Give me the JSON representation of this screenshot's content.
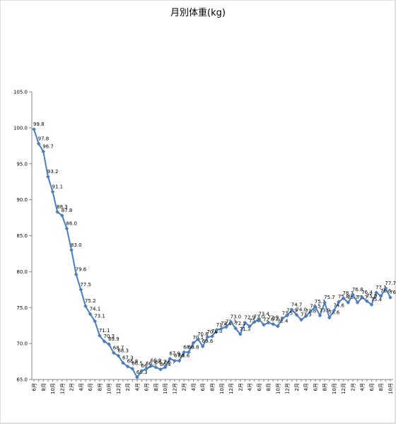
{
  "chart_data": {
    "type": "line",
    "title": "月別体重(kg)",
    "categories": [
      "6月",
      null,
      "8月",
      null,
      "10月",
      null,
      "12月",
      null,
      "2月",
      null,
      "4月",
      null,
      "6月",
      null,
      "8月",
      null,
      "10月",
      null,
      "12月",
      null,
      "2月",
      null,
      "4月",
      null,
      "6月",
      null,
      "8月",
      null,
      "10月",
      null,
      "12月",
      null,
      "2月",
      null,
      "4月",
      null,
      "6月",
      null,
      "8月",
      null,
      "10月",
      null,
      "12月",
      null,
      "2月",
      null,
      "4月",
      null,
      "6月",
      null,
      "8月",
      null,
      "10月",
      null,
      "12月",
      null,
      "2月",
      null,
      "4月",
      null,
      "6月",
      null,
      "8月",
      null,
      "10月",
      null,
      "12月",
      null,
      "2月",
      null,
      "4月",
      null,
      "6月",
      null,
      "8月",
      null,
      "10月"
    ],
    "series": [
      {
        "name": "体重",
        "color": "#4a7ebb",
        "values": [
          99.8,
          97.8,
          96.7,
          93.2,
          91.1,
          88.3,
          87.8,
          86.0,
          83.0,
          79.6,
          77.5,
          75.2,
          74.1,
          73.1,
          71.1,
          70.3,
          69.9,
          68.7,
          68.3,
          67.3,
          66.8,
          66.5,
          65.3,
          66.2,
          66.5,
          66.9,
          66.7,
          66.4,
          66.7,
          67.9,
          67.6,
          67.6,
          68.8,
          68.8,
          70.1,
          70.6,
          69.6,
          70.9,
          71.0,
          71.9,
          72.1,
          72.3,
          73.0,
          72.1,
          71.3,
          72.9,
          72.4,
          73.0,
          73.4,
          72.6,
          72.9,
          72.7,
          72.4,
          73.5,
          73.9,
          74.7,
          74.0,
          73.3,
          73.8,
          74.5,
          75.1,
          73.9,
          75.7,
          73.6,
          74.6,
          75.8,
          76.3,
          75.7,
          76.8,
          75.7,
          76.4,
          75.9,
          75.4,
          77.1,
          76.6,
          77.7,
          76.4
        ],
        "value_labels": [
          "99.8",
          "97.8",
          "96.7",
          "93.2",
          "91.1",
          "88.3",
          "87.8",
          "86.0",
          "83.0",
          "79.6",
          "77.5",
          "75.2",
          "74.1",
          "73.1",
          "71.1",
          "70.3",
          "69.9",
          "68.7",
          "68.3",
          "67.3",
          "66.8",
          "66.5",
          "65.3",
          "66.2",
          "66.5",
          "66.9",
          "66.7",
          "66.4",
          "66.7",
          "67.9",
          "67.6",
          "67.6",
          "68.8",
          "68.8",
          "70.1",
          "70.6",
          "69.6",
          "70.9",
          "71.0",
          "71.9",
          "72.1",
          "72.3",
          "73.0",
          "72.1",
          "71.3",
          "72.9",
          "72.4",
          "73.0",
          "73.4",
          "72.6",
          "72.9",
          "72.7",
          "72.4",
          "73.5",
          "73.9",
          "74.7",
          "74.0",
          "73.3",
          "73.8",
          "74.5",
          "75.1",
          "73.9",
          "75.7",
          "73.6",
          "74.6",
          "75.8",
          "76.3",
          "75.7",
          "76.8",
          "75.7",
          "76.4",
          "75.9",
          "75.4",
          "77.1",
          "76.6",
          "77.7",
          "76.4"
        ]
      }
    ],
    "ylim": [
      65,
      105
    ],
    "yticks": [
      {
        "value": 65,
        "label": "65.0"
      },
      {
        "value": 70,
        "label": "70.0"
      },
      {
        "value": 75,
        "label": "75.0"
      },
      {
        "value": 80,
        "label": "80.0"
      },
      {
        "value": 85,
        "label": "85.0"
      },
      {
        "value": 90,
        "label": "90.0"
      },
      {
        "value": 95,
        "label": "95.0"
      },
      {
        "value": 100,
        "label": "100.0"
      },
      {
        "value": 105,
        "label": "105.0"
      }
    ],
    "grid": false
  }
}
